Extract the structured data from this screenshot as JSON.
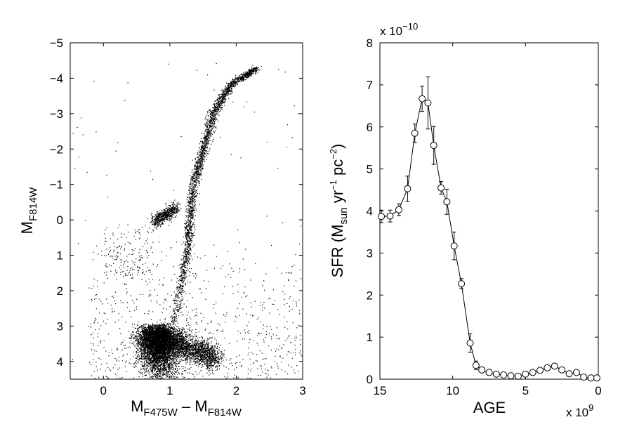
{
  "chart_data": [
    {
      "type": "scatter",
      "xlabel": {
        "main": "M",
        "sub1": "F475W",
        "mid": " – M",
        "sub2": "F814W"
      },
      "ylabel": {
        "main": "M",
        "sub": "F814W"
      },
      "xlim": [
        -0.5,
        3
      ],
      "ylim": [
        4.5,
        -5
      ],
      "y_inverted": true,
      "xticks": [
        "0",
        "1",
        "2",
        "3"
      ],
      "yticks": [
        "−5",
        "−4",
        "−3",
        "−2",
        "−1",
        "0",
        "1",
        "2",
        "3",
        "4"
      ],
      "grid": false,
      "marker_color": "#000000",
      "features": {
        "main_sequence_turnoff": {
          "x": 0.8,
          "y": 3.6
        },
        "red_giant_branch": [
          [
            1.0,
            3.3
          ],
          [
            1.15,
            2.0
          ],
          [
            1.25,
            1.0
          ],
          [
            1.3,
            0.0
          ],
          [
            1.35,
            -1.0
          ],
          [
            1.5,
            -2.0
          ],
          [
            1.65,
            -3.0
          ],
          [
            1.9,
            -3.8
          ],
          [
            2.3,
            -4.3
          ]
        ],
        "red_clump": {
          "x": 1.05,
          "y": -0.2
        },
        "horizontal_branch": [
          [
            0.5,
            0.0
          ],
          [
            1.0,
            -0.3
          ]
        ]
      }
    },
    {
      "type": "line",
      "xlabel": "AGE",
      "ylabel": {
        "pre": "SFR (M",
        "sub1": "sun",
        "mid1": " yr",
        "sup1": "−1",
        "mid2": " pc",
        "sup2": "−2",
        "post": ")"
      },
      "x_multiplier": {
        "base": "x 10",
        "exp": "9"
      },
      "y_multiplier": {
        "base": "x 10",
        "exp": "−10"
      },
      "xlim": [
        15,
        0
      ],
      "x_inverted": true,
      "ylim": [
        0,
        8
      ],
      "xticks": [
        "15",
        "10",
        "5",
        "0"
      ],
      "yticks": [
        "0",
        "1",
        "2",
        "3",
        "4",
        "5",
        "6",
        "7",
        "8"
      ],
      "grid": false,
      "marker": "open-circle",
      "series": [
        {
          "x": [
            14.9,
            14.3,
            13.7,
            13.1,
            12.6,
            12.1,
            11.7,
            11.3,
            10.8,
            10.4,
            9.9,
            9.4,
            8.8,
            8.4,
            8.0,
            7.5,
            7.0,
            6.5,
            6.0,
            5.5,
            5.0,
            4.5,
            4.0,
            3.5,
            3.0,
            2.5,
            2.0,
            1.5,
            1.0,
            0.5,
            0.1
          ],
          "y": [
            3.87,
            3.88,
            4.03,
            4.53,
            5.85,
            6.67,
            6.57,
            5.56,
            4.55,
            4.22,
            3.17,
            2.27,
            0.86,
            0.33,
            0.22,
            0.16,
            0.12,
            0.1,
            0.08,
            0.07,
            0.12,
            0.16,
            0.21,
            0.27,
            0.31,
            0.22,
            0.13,
            0.16,
            0.05,
            0.03,
            0.03
          ],
          "err": [
            0.15,
            0.14,
            0.14,
            0.3,
            0.22,
            0.3,
            0.62,
            0.45,
            0.15,
            0.3,
            0.33,
            0.12,
            0.22,
            0.1,
            0.04,
            0.04,
            0.04,
            0.03,
            0.03,
            0.03,
            0.04,
            0.05,
            0.05,
            0.06,
            0.06,
            0.05,
            0.04,
            0.05,
            0.03,
            0.02,
            0.02
          ]
        }
      ]
    }
  ]
}
